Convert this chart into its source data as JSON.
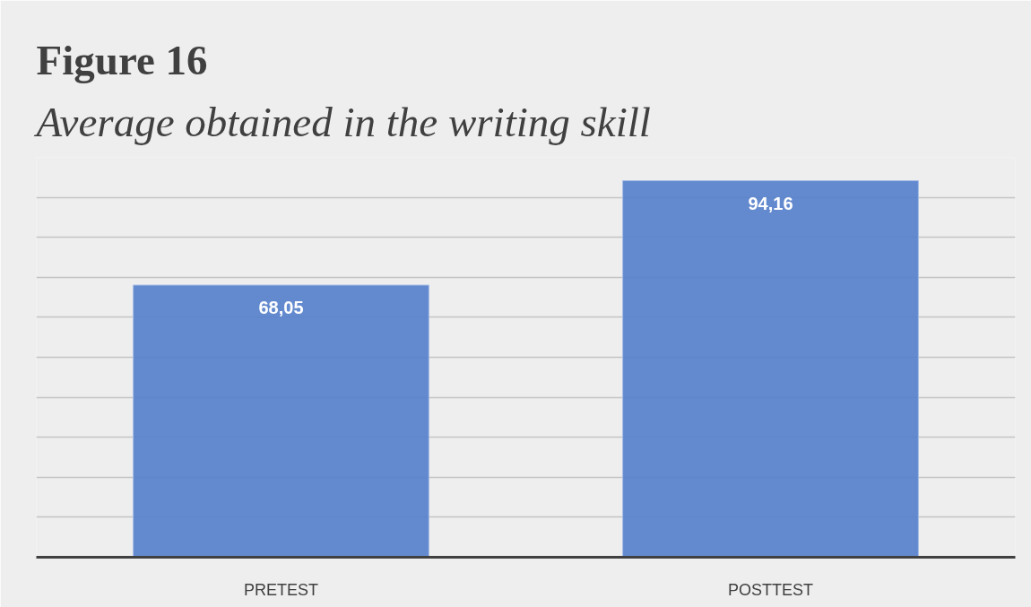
{
  "chart_data": {
    "type": "bar",
    "title": "Figure 16",
    "subtitle": "Average obtained in the writing skill",
    "categories": [
      "PRETEST",
      "POSTTEST"
    ],
    "values": [
      68.05,
      94.16
    ],
    "value_labels": [
      "68,05",
      "94,16"
    ],
    "color": "#5b84cc",
    "ylim": [
      0,
      100
    ],
    "yticks": [
      {
        "value": 0,
        "label": null
      },
      {
        "value": 10,
        "label": null
      },
      {
        "value": 20,
        "label": null
      },
      {
        "value": 30,
        "label": null
      },
      {
        "value": 40,
        "label": null
      },
      {
        "value": 50,
        "label": null
      },
      {
        "value": 60,
        "label": null
      },
      {
        "value": 70,
        "label": null
      },
      {
        "value": 80,
        "label": null
      },
      {
        "value": 90,
        "label": null
      },
      {
        "value": 100,
        "label": null
      }
    ],
    "grid": "y",
    "tick_labels": "x"
  }
}
